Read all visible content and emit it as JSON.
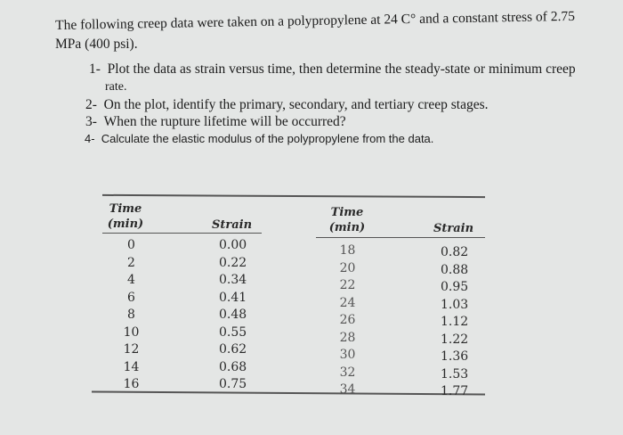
{
  "problem": {
    "intro_line1": "The following creep data were taken on a polypropylene at 24 C° and a constant stress of  2.75",
    "intro_line2": "MPa (400 psi).",
    "questions": [
      {
        "num": "1-",
        "text": "Plot the data as strain versus time, then determine the steady-state or minimum creep",
        "cont": "rate."
      },
      {
        "num": "2-",
        "text": "On the plot, identify the primary, secondary, and tertiary creep stages."
      },
      {
        "num": "3-",
        "text": "When the rupture lifetime will be occurred?"
      },
      {
        "num": "4-",
        "text": "Calculate the elastic modulus of the polypropylene from the data."
      }
    ]
  },
  "table": {
    "headers": {
      "time_line1": "Time",
      "time_line2": "(min)",
      "strain": "Strain"
    },
    "left": {
      "time": [
        "0",
        "2",
        "4",
        "6",
        "8",
        "10",
        "12",
        "14",
        "16"
      ],
      "strain": [
        "0.00",
        "0.22",
        "0.34",
        "0.41",
        "0.48",
        "0.55",
        "0.62",
        "0.68",
        "0.75"
      ]
    },
    "right": {
      "time": [
        "18",
        "20",
        "22",
        "24",
        "26",
        "28",
        "30",
        "32",
        "34"
      ],
      "strain": [
        "0.82",
        "0.88",
        "0.95",
        "1.03",
        "1.12",
        "1.22",
        "1.36",
        "1.53",
        "1.77"
      ]
    }
  }
}
